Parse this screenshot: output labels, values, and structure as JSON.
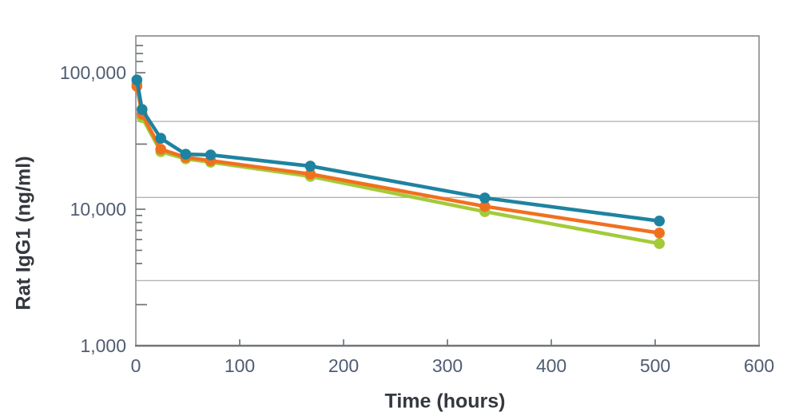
{
  "chart_data": {
    "type": "line",
    "title": "",
    "xlabel": "Time (hours)",
    "ylabel": "Rat IgG1 (ng/ml)",
    "x": [
      1,
      6,
      24,
      48,
      72,
      168,
      336,
      504
    ],
    "series": [
      {
        "name": "series-teal",
        "color": "#1e83a1",
        "values": [
          88600,
          53800,
          33100,
          25300,
          25000,
          20700,
          12100,
          8200
        ]
      },
      {
        "name": "series-orange",
        "color": "#f1701f",
        "values": [
          79600,
          49700,
          27500,
          24000,
          22700,
          18100,
          10500,
          6700
        ]
      },
      {
        "name": "series-green",
        "color": "#a3cb39",
        "values": [
          82800,
          47000,
          26400,
          23400,
          22100,
          17400,
          9600,
          5600
        ]
      }
    ],
    "x_ticks": [
      0,
      100,
      200,
      300,
      400,
      500,
      600
    ],
    "x_range": [
      0,
      600
    ],
    "y_scale": "log",
    "y_range": [
      1000,
      186000
    ],
    "y_ticks": [
      "1,000",
      "10,000",
      "100,000"
    ],
    "y_tick_values": [
      1000,
      10000,
      100000
    ],
    "y_gridlines": [
      44000,
      12200,
      3000
    ],
    "grid": "horizontal",
    "legend": "none",
    "colors": {
      "gridline": "#b5b5b5",
      "plot_border": "#8e9394",
      "axis_line": "#717678",
      "tick_mark": "#6f7478",
      "tick_label": "#505c72",
      "axis_title": "#34383e",
      "background": "#ffffff"
    }
  }
}
